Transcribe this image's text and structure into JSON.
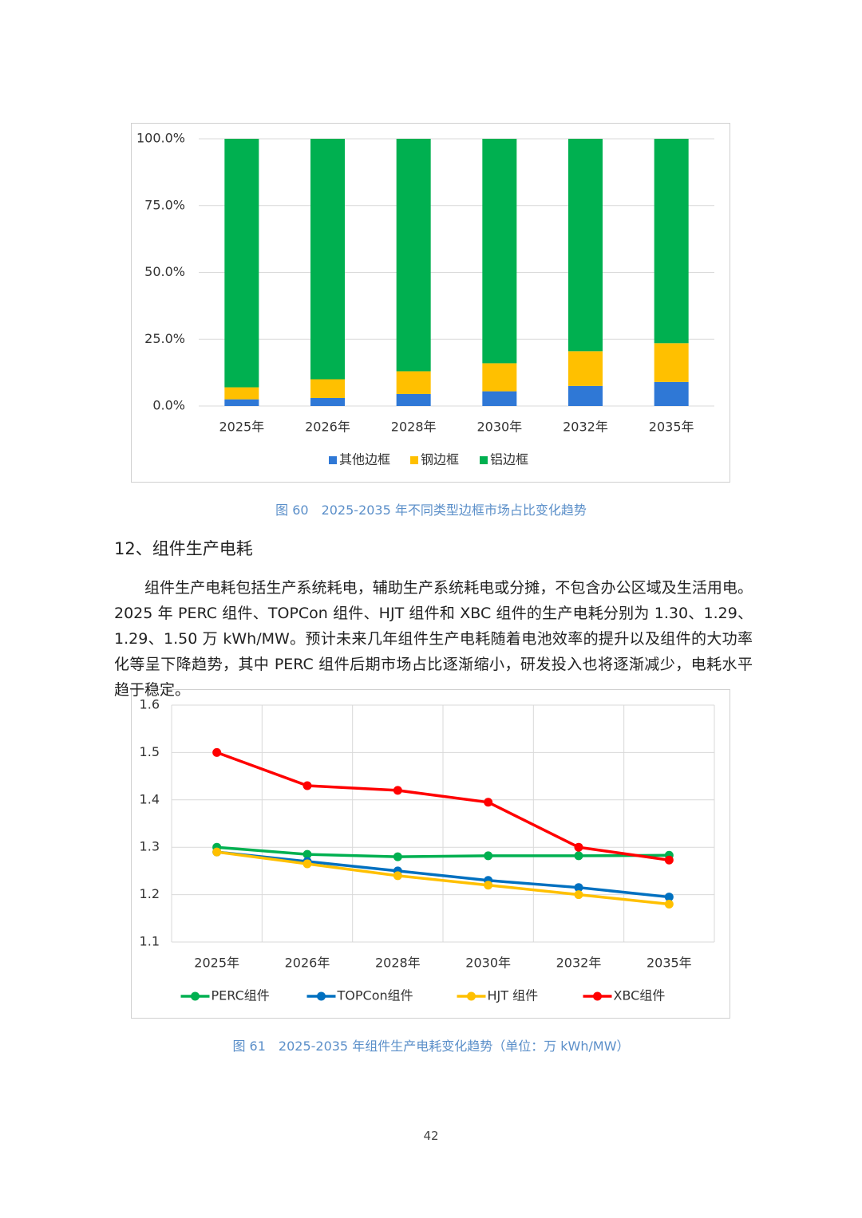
{
  "chart_data": [
    {
      "type": "stacked_bar",
      "categories": [
        "2025年",
        "2026年",
        "2028年",
        "2030年",
        "2032年",
        "2035年"
      ],
      "series": [
        {
          "name": "其他边框",
          "color": "#2f78d6",
          "values": [
            2.5,
            3,
            4.5,
            5.5,
            7.5,
            9
          ]
        },
        {
          "name": "钢边框",
          "color": "#ffc000",
          "values": [
            4.5,
            7,
            8.5,
            10.5,
            13,
            14.5
          ]
        },
        {
          "name": "铝边框",
          "color": "#00b050",
          "values": [
            93,
            90,
            87,
            84,
            79.5,
            76.5
          ]
        }
      ],
      "ylim": [
        0,
        100
      ],
      "yticks": [
        {
          "value": 0,
          "label": "0.0%"
        },
        {
          "value": 25,
          "label": "25.0%"
        },
        {
          "value": 50,
          "label": "50.0%"
        },
        {
          "value": 75,
          "label": "75.0%"
        },
        {
          "value": 100,
          "label": "100.0%"
        }
      ],
      "grid": true,
      "legend": "bottom"
    },
    {
      "type": "line",
      "categories": [
        "2025年",
        "2026年",
        "2028年",
        "2030年",
        "2032年",
        "2035年"
      ],
      "series": [
        {
          "name": "PERC组件",
          "color": "#00b050",
          "values": [
            1.3,
            1.285,
            1.28,
            1.282,
            1.282,
            1.283
          ]
        },
        {
          "name": "TOPCon组件",
          "color": "#0070c0",
          "values": [
            1.29,
            1.27,
            1.25,
            1.23,
            1.215,
            1.195
          ]
        },
        {
          "name": "HJT 组件",
          "color": "#ffc000",
          "values": [
            1.29,
            1.265,
            1.24,
            1.22,
            1.2,
            1.18
          ]
        },
        {
          "name": "XBC组件",
          "color": "#ff0000",
          "values": [
            1.5,
            1.43,
            1.42,
            1.395,
            1.3,
            1.273
          ]
        }
      ],
      "ylim": [
        1.1,
        1.6
      ],
      "yticks": [
        1.1,
        1.2,
        1.3,
        1.4,
        1.5,
        1.6
      ],
      "grid": true,
      "legend": "bottom"
    }
  ],
  "captions": [
    "图 60　2025-2035 年不同类型边框市场占比变化趋势",
    "图 61　2025-2035 年组件生产电耗变化趋势（单位：万 kWh/MW）"
  ],
  "heading": "12、组件生产电耗",
  "paragraph": "组件生产电耗包括生产系统耗电，辅助生产系统耗电或分摊，不包含办公区域及生活用电。2025 年 PERC 组件、TOPCon 组件、HJT 组件和 XBC 组件的生产电耗分别为 1.30、1.29、1.29、1.50 万 kWh/MW。预计未来几年组件生产电耗随着电池效率的提升以及组件的大功率化等呈下降趋势，其中 PERC 组件后期市场占比逐渐缩小，研发投入也将逐渐减少，电耗水平趋于稳定。",
  "page_number": "42"
}
